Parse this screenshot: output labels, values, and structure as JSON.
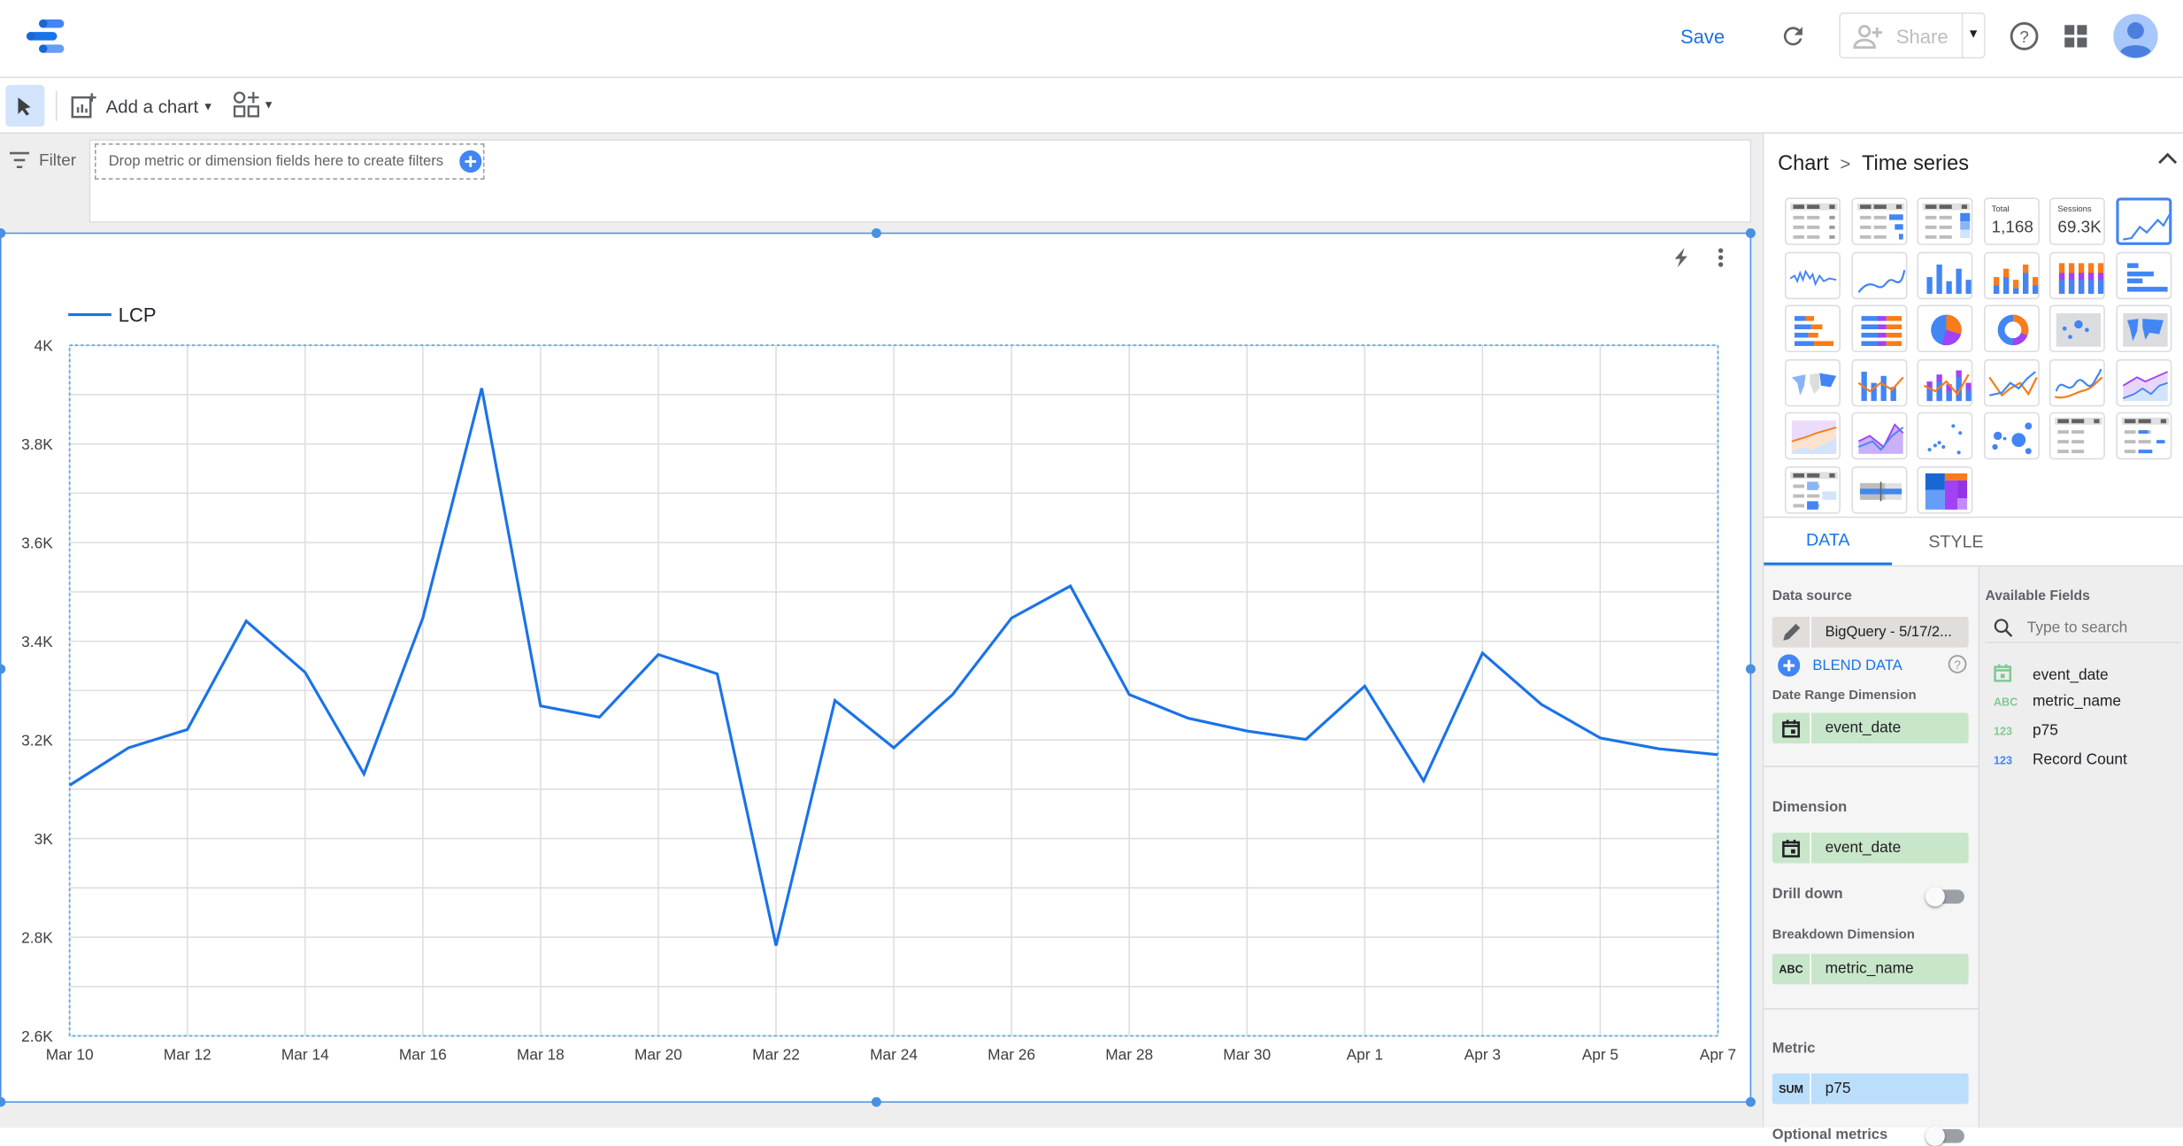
{
  "header": {
    "save_label": "Save",
    "share_label": "Share"
  },
  "toolbar": {
    "add_chart_label": "Add a chart"
  },
  "filter": {
    "label": "Filter",
    "dropzone_text": "Drop metric or dimension fields here to create filters"
  },
  "colors": {
    "accent": "#1a73e8",
    "series": "#1a73e8",
    "dimension_chip": "#c8e6c9",
    "metric_chip": "#bbdefb"
  },
  "chart_data": {
    "type": "line",
    "legend": [
      "LCP"
    ],
    "legend_position": "top-left",
    "grid": true,
    "ylim": [
      2600,
      4000
    ],
    "y_ticks": [
      "2.6K",
      "2.8K",
      "3K",
      "3.2K",
      "3.4K",
      "3.6K",
      "3.8K",
      "4K"
    ],
    "x_ticks": [
      "Mar 10",
      "Mar 12",
      "Mar 14",
      "Mar 16",
      "Mar 18",
      "Mar 20",
      "Mar 22",
      "Mar 24",
      "Mar 26",
      "Mar 28",
      "Mar 30",
      "Apr 1",
      "Apr 3",
      "Apr 5",
      "Apr 7"
    ],
    "x": [
      "Mar 10",
      "Mar 11",
      "Mar 12",
      "Mar 13",
      "Mar 14",
      "Mar 15",
      "Mar 16",
      "Mar 17",
      "Mar 18",
      "Mar 19",
      "Mar 20",
      "Mar 21",
      "Mar 22",
      "Mar 23",
      "Mar 24",
      "Mar 25",
      "Mar 26",
      "Mar 27",
      "Mar 28",
      "Mar 29",
      "Mar 30",
      "Mar 31",
      "Apr 1",
      "Apr 2",
      "Apr 3",
      "Apr 4",
      "Apr 5",
      "Apr 6",
      "Apr 7"
    ],
    "series": [
      {
        "name": "LCP",
        "values": [
          3108,
          3184,
          3221,
          3441,
          3337,
          3131,
          3447,
          3913,
          3269,
          3246,
          3373,
          3334,
          2783,
          3280,
          3184,
          3292,
          3447,
          3512,
          3292,
          3244,
          3218,
          3201,
          3309,
          3117,
          3376,
          3272,
          3204,
          3182,
          3170
        ]
      }
    ]
  },
  "panel": {
    "breadcrumb_root": "Chart",
    "breadcrumb_current": "Time series",
    "chart_types": [
      "table",
      "table-bars",
      "table-heatmap",
      "scorecard",
      "scorecard-compact",
      "time-series",
      "sparkline",
      "smoothed-line",
      "column",
      "stacked-column",
      "100-stacked-column",
      "bar",
      "stacked-bar",
      "100-stacked-bar",
      "pie",
      "donut",
      "bubble-map",
      "filled-map",
      "geo-chart",
      "combo",
      "stacked-combo",
      "line",
      "smoothed-line-2",
      "area",
      "stacked-area",
      "100-area",
      "scatter",
      "bubble",
      "pivot",
      "pivot-bars",
      "pivot-heatmap",
      "bullet",
      "treemap"
    ],
    "selected_chart_type": "time-series",
    "scorecard1": {
      "label": "Total",
      "value": "1,168"
    },
    "scorecard2": {
      "label": "Sessions",
      "value": "69.3K"
    },
    "tabs": [
      "DATA",
      "STYLE"
    ],
    "active_tab": "DATA",
    "data_source_label": "Data source",
    "data_source": "BigQuery - 5/17/2...",
    "blend_label": "BLEND DATA",
    "date_range_label": "Date Range Dimension",
    "date_range_value": "event_date",
    "dimension_label": "Dimension",
    "dimension_value": "event_date",
    "drill_down_label": "Drill down",
    "drill_down_on": false,
    "breakdown_label": "Breakdown Dimension",
    "breakdown_type": "ABC",
    "breakdown_value": "metric_name",
    "metric_label": "Metric",
    "metric_agg": "SUM",
    "metric_value": "p75",
    "optional_metrics_label": "Optional metrics",
    "optional_metrics_on": false,
    "available_label": "Available Fields",
    "search_placeholder": "Type to search",
    "fields": [
      {
        "type": "date",
        "name": "event_date"
      },
      {
        "type": "ABC",
        "name": "metric_name"
      },
      {
        "type": "123",
        "name": "p75"
      },
      {
        "type": "123",
        "name": "Record Count"
      }
    ]
  }
}
